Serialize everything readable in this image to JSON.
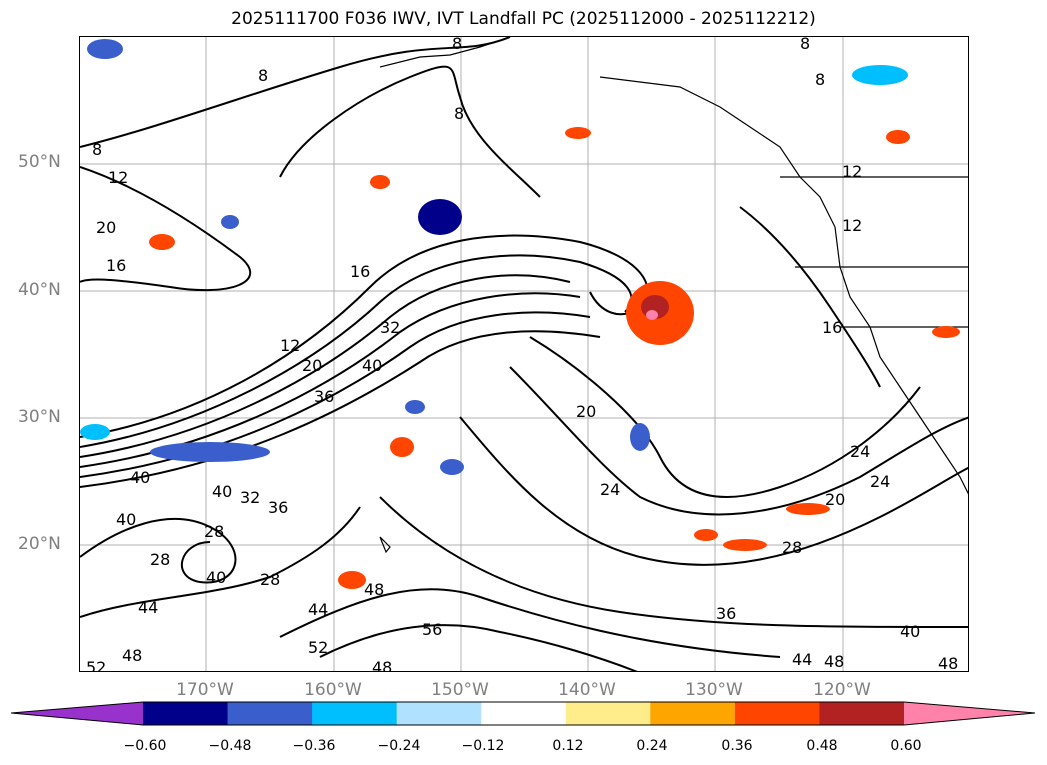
{
  "title": "2025111700 F036 IWV, IVT Landfall PC (2025112000 - 2025112212)",
  "lat_labels": [
    "50°N",
    "40°N",
    "30°N",
    "20°N"
  ],
  "lon_labels": [
    "170°W",
    "160°W",
    "150°W",
    "140°W",
    "130°W",
    "120°W"
  ],
  "colorbar": {
    "colors": [
      "#9932cc",
      "#00008b",
      "#3a5fcd",
      "#00bfff",
      "#b0e2ff",
      "#ffffff",
      "#ffec8b",
      "#ffa500",
      "#ff4500",
      "#b22222",
      "#ff82ab"
    ],
    "tick_labels": [
      "−0.60",
      "−0.48",
      "−0.36",
      "−0.24",
      "−0.12",
      "0.12",
      "0.24",
      "0.36",
      "0.48",
      "0.60"
    ]
  },
  "contour_labels": [
    "8",
    "8",
    "8",
    "8",
    "8",
    "8",
    "12",
    "20",
    "16",
    "16",
    "12",
    "20",
    "32",
    "40",
    "36",
    "20",
    "24",
    "24",
    "20",
    "24",
    "28",
    "12",
    "12",
    "16",
    "40",
    "40",
    "40",
    "32",
    "36",
    "28",
    "28",
    "28",
    "40",
    "44",
    "44",
    "48",
    "48",
    "52",
    "52",
    "48",
    "56",
    "36",
    "40",
    "44",
    "48",
    "48"
  ]
}
